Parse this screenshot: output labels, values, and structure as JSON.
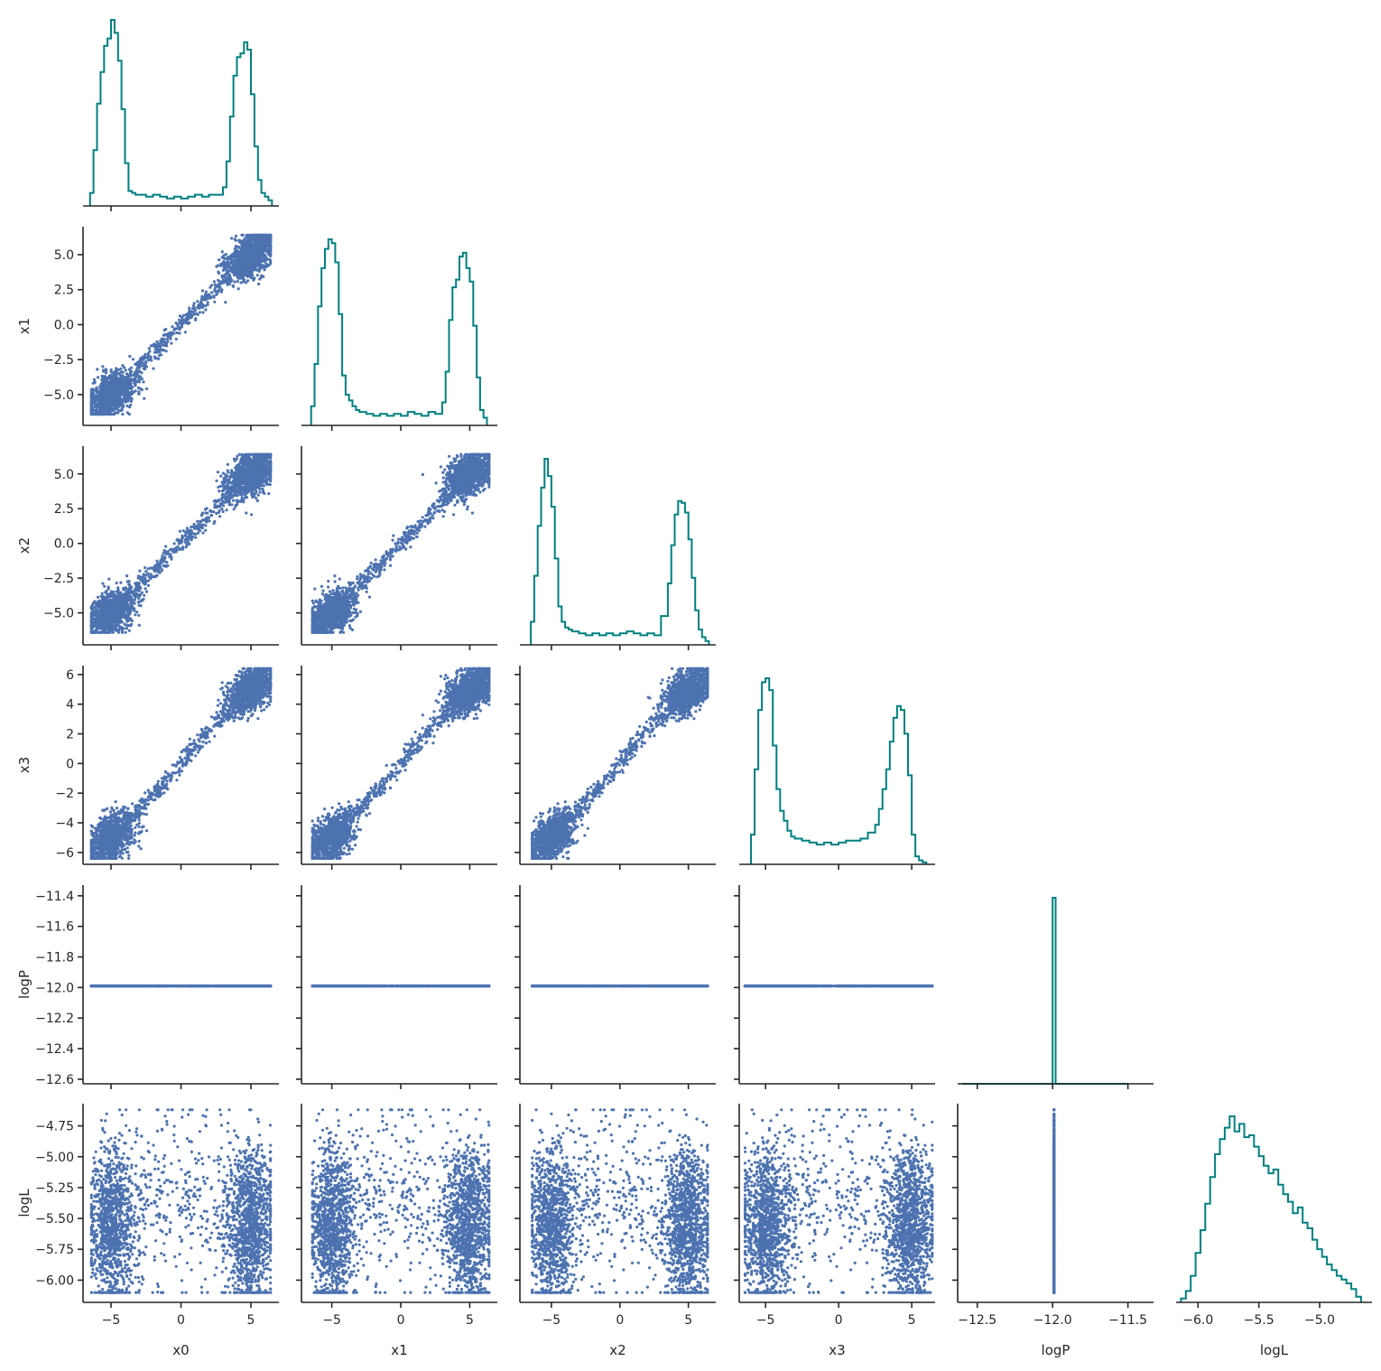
{
  "chart_data": {
    "type": "scatter",
    "title": "",
    "layout": "corner",
    "variables": [
      "x0",
      "x1",
      "x2",
      "x3",
      "logP",
      "logL"
    ],
    "colors": {
      "hist": "#008080",
      "scatter": "#4c72b0"
    },
    "ranges": {
      "x0": [
        -7.0,
        7.0
      ],
      "x1": [
        -7.2,
        7.0
      ],
      "x2": [
        -7.3,
        7.0
      ],
      "x3": [
        -6.8,
        6.6
      ],
      "logP": [
        -12.63,
        -11.33
      ],
      "logL": [
        -6.18,
        -4.57
      ]
    },
    "ticks": {
      "x0": [
        -5,
        0,
        5
      ],
      "x1": [
        -5,
        0,
        5
      ],
      "x2": [
        -5,
        0,
        5
      ],
      "x3": [
        -5,
        0,
        5
      ],
      "logP": [
        -12.5,
        -12.0,
        -11.5
      ],
      "logL": [
        -6.0,
        -5.5,
        -5.0
      ]
    },
    "ytick_labels": {
      "x1": [
        "5.0",
        "2.5",
        "0.0",
        "−2.5",
        "−5.0"
      ],
      "x2": [
        "5.0",
        "2.5",
        "0.0",
        "−2.5",
        "−5.0"
      ],
      "x3": [
        "6",
        "4",
        "2",
        "0",
        "−2",
        "−4",
        "−6"
      ],
      "logP": [
        "−11.4",
        "−11.6",
        "−11.8",
        "−12.0",
        "−12.2",
        "−12.4",
        "−12.6"
      ],
      "logL": [
        "−4.75",
        "−5.00",
        "−5.25",
        "−5.50",
        "−5.75",
        "−6.00"
      ]
    },
    "ytick_values": {
      "x1": [
        5.0,
        2.5,
        0.0,
        -2.5,
        -5.0
      ],
      "x2": [
        5.0,
        2.5,
        0.0,
        -2.5,
        -5.0
      ],
      "x3": [
        6,
        4,
        2,
        0,
        -2,
        -4,
        -6
      ],
      "logP": [
        -11.4,
        -11.6,
        -11.8,
        -12.0,
        -12.2,
        -12.4,
        -12.6
      ],
      "logL": [
        -4.75,
        -5.0,
        -5.25,
        -5.5,
        -5.75,
        -6.0
      ]
    },
    "xtick_labels": {
      "x0": [
        "−5",
        "0",
        "5"
      ],
      "x1": [
        "−5",
        "0",
        "5"
      ],
      "x2": [
        "−5",
        "0",
        "5"
      ],
      "x3": [
        "−5",
        "0",
        "5"
      ],
      "logP": [
        "−12.5",
        "−12.0",
        "−11.5"
      ],
      "logL": [
        "−6.0",
        "−5.5",
        "−5.0"
      ]
    },
    "axis_labels": {
      "x": [
        "x0",
        "x1",
        "x2",
        "x3",
        "logP",
        "logL"
      ],
      "y": [
        "x1",
        "x2",
        "x3",
        "logP",
        "logL"
      ]
    },
    "histograms": {
      "x0": {
        "edges": [
          -6.5,
          -6.25,
          -6.0,
          -5.75,
          -5.5,
          -5.25,
          -5.0,
          -4.75,
          -4.5,
          -4.25,
          -4.0,
          -3.75,
          -3.5,
          -3.25,
          -3.0,
          -2.5,
          -2.0,
          -1.5,
          -1.0,
          -0.5,
          0.0,
          0.5,
          1.0,
          1.5,
          2.0,
          2.5,
          3.0,
          3.25,
          3.5,
          3.75,
          4.0,
          4.25,
          4.5,
          4.75,
          5.0,
          5.25,
          5.5,
          5.75,
          6.0,
          6.25,
          6.5
        ],
        "counts": [
          0.07,
          0.3,
          0.55,
          0.72,
          0.86,
          0.9,
          1.0,
          0.93,
          0.78,
          0.52,
          0.23,
          0.08,
          0.07,
          0.06,
          0.06,
          0.05,
          0.06,
          0.05,
          0.04,
          0.05,
          0.04,
          0.05,
          0.06,
          0.05,
          0.06,
          0.06,
          0.1,
          0.24,
          0.48,
          0.7,
          0.8,
          0.82,
          0.88,
          0.84,
          0.6,
          0.32,
          0.14,
          0.07,
          0.05,
          0.03
        ]
      },
      "x1": {
        "edges": [
          -6.5,
          -6.25,
          -6.0,
          -5.75,
          -5.5,
          -5.25,
          -5.0,
          -4.75,
          -4.5,
          -4.25,
          -4.0,
          -3.75,
          -3.5,
          -3.25,
          -3.0,
          -2.5,
          -2.0,
          -1.5,
          -1.0,
          -0.5,
          0.0,
          0.5,
          1.0,
          1.5,
          2.0,
          2.5,
          3.0,
          3.25,
          3.5,
          3.75,
          4.0,
          4.25,
          4.5,
          4.75,
          5.0,
          5.25,
          5.5,
          5.75,
          6.0,
          6.25
        ],
        "counts": [
          0.1,
          0.32,
          0.62,
          0.82,
          0.92,
          0.97,
          0.95,
          0.85,
          0.58,
          0.26,
          0.16,
          0.13,
          0.1,
          0.08,
          0.07,
          0.06,
          0.05,
          0.06,
          0.05,
          0.06,
          0.05,
          0.07,
          0.06,
          0.05,
          0.07,
          0.06,
          0.12,
          0.28,
          0.55,
          0.72,
          0.76,
          0.88,
          0.9,
          0.82,
          0.75,
          0.52,
          0.25,
          0.08,
          0.04
        ]
      },
      "x2": {
        "edges": [
          -6.5,
          -6.25,
          -6.0,
          -5.75,
          -5.5,
          -5.25,
          -5.0,
          -4.75,
          -4.5,
          -4.25,
          -4.0,
          -3.75,
          -3.5,
          -3.0,
          -2.5,
          -2.0,
          -1.5,
          -1.0,
          -0.5,
          0.0,
          0.5,
          1.0,
          1.5,
          2.0,
          2.5,
          3.0,
          3.5,
          3.75,
          4.0,
          4.25,
          4.5,
          4.75,
          5.0,
          5.25,
          5.5,
          5.75,
          6.0,
          6.25,
          6.5
        ],
        "counts": [
          0.12,
          0.36,
          0.62,
          0.82,
          0.97,
          0.88,
          0.72,
          0.45,
          0.2,
          0.12,
          0.09,
          0.08,
          0.07,
          0.06,
          0.05,
          0.06,
          0.05,
          0.06,
          0.05,
          0.06,
          0.07,
          0.06,
          0.05,
          0.06,
          0.05,
          0.15,
          0.32,
          0.52,
          0.68,
          0.75,
          0.74,
          0.69,
          0.55,
          0.35,
          0.18,
          0.08,
          0.04,
          0.02
        ]
      },
      "x3": {
        "edges": [
          -6.0,
          -5.75,
          -5.5,
          -5.25,
          -5.0,
          -4.75,
          -4.5,
          -4.25,
          -4.0,
          -3.75,
          -3.5,
          -3.25,
          -3.0,
          -2.5,
          -2.0,
          -1.5,
          -1.0,
          -0.5,
          0.0,
          0.5,
          1.0,
          1.5,
          2.0,
          2.5,
          2.75,
          3.0,
          3.25,
          3.5,
          3.75,
          4.0,
          4.25,
          4.5,
          4.75,
          5.0,
          5.25,
          5.5,
          5.75,
          6.0
        ],
        "counts": [
          0.15,
          0.48,
          0.78,
          0.92,
          0.94,
          0.88,
          0.6,
          0.38,
          0.27,
          0.22,
          0.17,
          0.14,
          0.13,
          0.12,
          0.11,
          0.1,
          0.11,
          0.1,
          0.11,
          0.12,
          0.12,
          0.13,
          0.16,
          0.2,
          0.28,
          0.38,
          0.48,
          0.62,
          0.74,
          0.8,
          0.78,
          0.66,
          0.45,
          0.15,
          0.04,
          0.02,
          0.01
        ]
      },
      "logP": {
        "edges": [
          -12.6,
          -12.0,
          -11.99,
          -11.98,
          -11.5
        ],
        "counts": [
          0.0,
          1.0,
          1.0,
          0.0
        ]
      },
      "logL": {
        "edges": [
          -6.14,
          -6.1,
          -6.06,
          -6.02,
          -5.98,
          -5.94,
          -5.9,
          -5.86,
          -5.82,
          -5.78,
          -5.74,
          -5.7,
          -5.66,
          -5.62,
          -5.58,
          -5.54,
          -5.5,
          -5.46,
          -5.42,
          -5.38,
          -5.34,
          -5.3,
          -5.26,
          -5.22,
          -5.18,
          -5.14,
          -5.1,
          -5.06,
          -5.02,
          -4.98,
          -4.94,
          -4.9,
          -4.86,
          -4.82,
          -4.78,
          -4.74,
          -4.7,
          -4.66
        ],
        "counts": [
          0.02,
          0.06,
          0.14,
          0.26,
          0.38,
          0.52,
          0.66,
          0.78,
          0.86,
          0.92,
          0.98,
          0.9,
          0.94,
          0.87,
          0.88,
          0.82,
          0.77,
          0.72,
          0.68,
          0.7,
          0.62,
          0.57,
          0.53,
          0.47,
          0.5,
          0.42,
          0.39,
          0.33,
          0.28,
          0.24,
          0.2,
          0.17,
          0.14,
          0.12,
          0.1,
          0.07,
          0.03
        ]
      }
    }
  }
}
